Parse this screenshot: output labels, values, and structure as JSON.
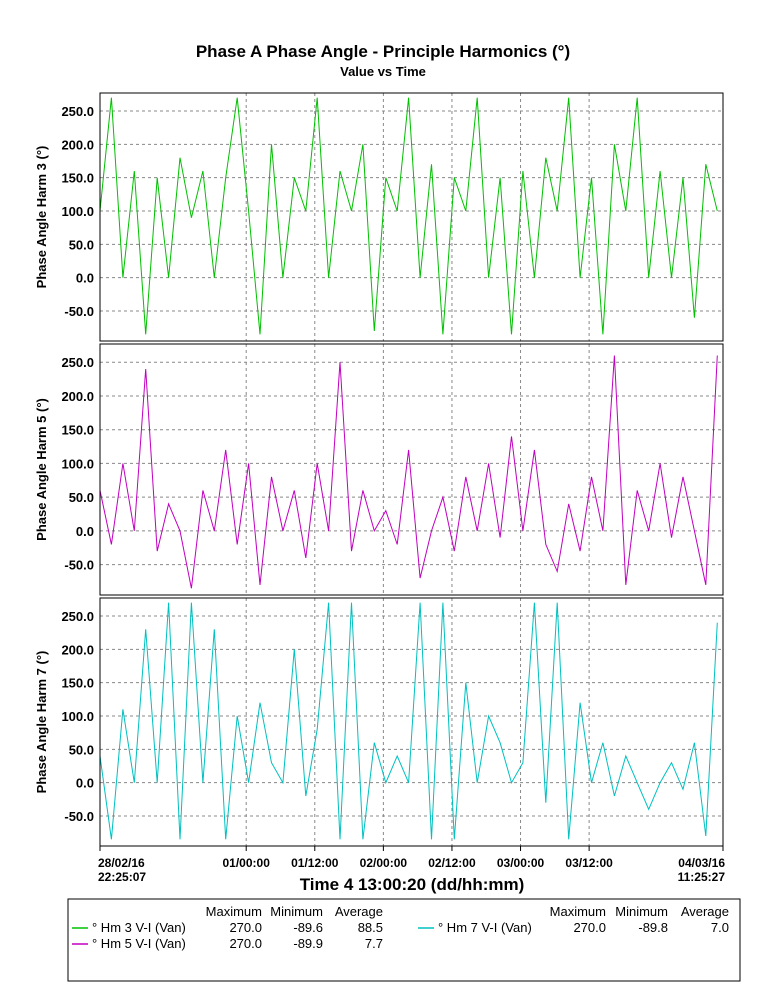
{
  "chart_data": {
    "type": "line",
    "title": "Phase A Phase Angle - Principle Harmonics (°)",
    "subtitle": "Value vs Time",
    "x_label": "Time 4 13:00:20 (dd/hh:mm)",
    "xlim": [
      0,
      109.006
    ],
    "xticks": [
      {
        "value": 0,
        "label": "28/02/16 22:25:07"
      },
      {
        "value": 25.581,
        "label": "01/00:00"
      },
      {
        "value": 37.581,
        "label": "01/12:00"
      },
      {
        "value": 49.581,
        "label": "02/00:00"
      },
      {
        "value": 61.581,
        "label": "02/12:00"
      },
      {
        "value": 73.581,
        "label": "03/00:00"
      },
      {
        "value": 85.581,
        "label": "03/12:00"
      },
      {
        "value": 109.006,
        "label": "04/03/16 11:25:27"
      }
    ],
    "grid": true,
    "legend_headers": [
      "Maximum",
      "Minimum",
      "Average"
    ],
    "x": [
      0,
      2,
      4,
      6,
      8,
      10,
      12,
      14,
      16,
      18,
      20,
      22,
      24,
      26,
      28,
      30,
      32,
      34,
      36,
      38,
      40,
      42,
      44,
      46,
      48,
      50,
      52,
      54,
      56,
      58,
      60,
      62,
      64,
      66,
      68,
      70,
      72,
      74,
      76,
      78,
      80,
      82,
      84,
      86,
      88,
      90,
      92,
      94,
      96,
      98,
      100,
      102,
      104,
      106,
      108
    ],
    "panels": [
      {
        "y_label": "Phase Angle Harm 3 (°)",
        "ylim": [
          -95,
          277
        ],
        "yticks": [
          {
            "value": 250,
            "label": "250.0"
          },
          {
            "value": 200,
            "label": "200.0"
          },
          {
            "value": 150,
            "label": "150.0"
          },
          {
            "value": 100,
            "label": "100.0"
          },
          {
            "value": 50,
            "label": "50.0"
          },
          {
            "value": 0,
            "label": "0.0"
          },
          {
            "value": -50,
            "label": "-50.0"
          }
        ],
        "series": [
          {
            "name": "° Hm 3 V-I (Van)",
            "color": "#00c000",
            "stats": [
              "270.0",
              "-89.6",
              "88.5"
            ],
            "values": [
              100,
              270,
              0,
              160,
              -85,
              150,
              0,
              180,
              90,
              160,
              0,
              150,
              270,
              100,
              -85,
              200,
              0,
              150,
              100,
              270,
              0,
              160,
              100,
              200,
              -80,
              150,
              100,
              270,
              0,
              170,
              -85,
              150,
              100,
              270,
              0,
              150,
              -85,
              160,
              0,
              180,
              100,
              270,
              0,
              150,
              -85,
              200,
              100,
              270,
              0,
              160,
              0,
              150,
              -60,
              170,
              100
            ]
          }
        ]
      },
      {
        "y_label": "Phase Angle Harm 5 (°)",
        "ylim": [
          -95,
          277
        ],
        "yticks": [
          {
            "value": 250,
            "label": "250.0"
          },
          {
            "value": 200,
            "label": "200.0"
          },
          {
            "value": 150,
            "label": "150.0"
          },
          {
            "value": 100,
            "label": "100.0"
          },
          {
            "value": 50,
            "label": "50.0"
          },
          {
            "value": 0,
            "label": "0.0"
          },
          {
            "value": -50,
            "label": "-50.0"
          }
        ],
        "series": [
          {
            "name": "° Hm 5 V-I (Van)",
            "color": "#c000c0",
            "stats": [
              "270.0",
              "-89.9",
              "7.7"
            ],
            "values": [
              60,
              -20,
              100,
              0,
              240,
              -30,
              40,
              0,
              -85,
              60,
              0,
              120,
              -20,
              100,
              -80,
              80,
              0,
              60,
              -40,
              100,
              0,
              250,
              -30,
              60,
              0,
              30,
              -20,
              120,
              -70,
              0,
              50,
              -30,
              80,
              0,
              100,
              -10,
              140,
              0,
              120,
              -20,
              -60,
              40,
              -30,
              80,
              0,
              260,
              -80,
              60,
              0,
              100,
              -10,
              80,
              0,
              -80,
              260
            ]
          }
        ]
      },
      {
        "y_label": "Phase Angle Harm 7 (°)",
        "ylim": [
          -95,
          277
        ],
        "yticks": [
          {
            "value": 250,
            "label": "250.0"
          },
          {
            "value": 200,
            "label": "200.0"
          },
          {
            "value": 150,
            "label": "150.0"
          },
          {
            "value": 100,
            "label": "100.0"
          },
          {
            "value": 50,
            "label": "50.0"
          },
          {
            "value": 0,
            "label": "0.0"
          },
          {
            "value": -50,
            "label": "-50.0"
          }
        ],
        "series": [
          {
            "name": "° Hm 7 V-I (Van)",
            "color": "#00c0c0",
            "stats": [
              "270.0",
              "-89.8",
              "7.0"
            ],
            "values": [
              40,
              -85,
              110,
              0,
              230,
              0,
              270,
              -85,
              270,
              0,
              230,
              -85,
              100,
              0,
              120,
              30,
              0,
              200,
              -20,
              80,
              270,
              -85,
              270,
              -85,
              60,
              0,
              40,
              0,
              270,
              -85,
              270,
              -85,
              150,
              0,
              100,
              60,
              0,
              30,
              270,
              -30,
              270,
              -85,
              120,
              0,
              60,
              -20,
              40,
              0,
              -40,
              0,
              30,
              -10,
              60,
              -80,
              240
            ]
          }
        ]
      }
    ]
  }
}
